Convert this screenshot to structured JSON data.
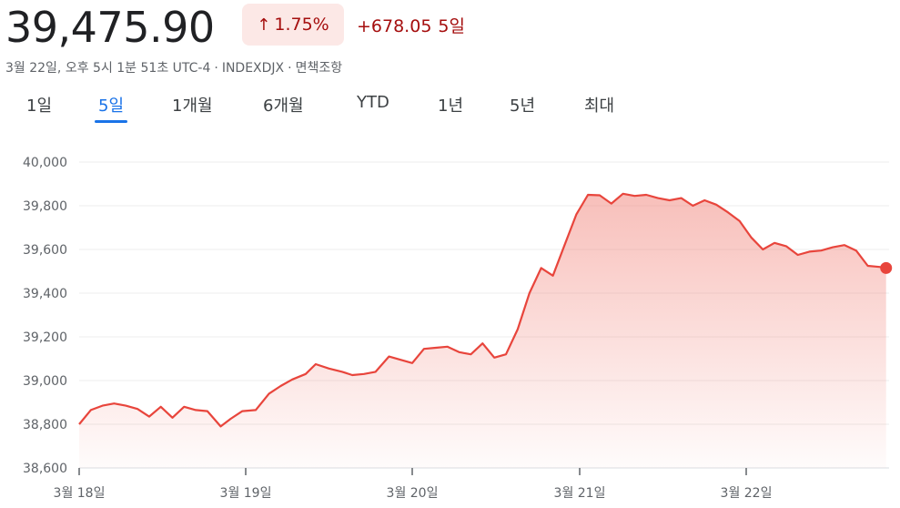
{
  "header": {
    "price": "39,475.90",
    "change_percent": "1.75%",
    "change_abs": "+678.05",
    "change_period": "5일",
    "up_arrow_icon": "arrow-up-icon"
  },
  "meta": {
    "timestamp": "3월 22일, 오후 5시 1분 51초 UTC-4",
    "ticker": "INDEXDJX",
    "disclaimer": "면책조항",
    "separator": "·"
  },
  "tabs": [
    {
      "label": "1일",
      "active": false
    },
    {
      "label": "5일",
      "active": true
    },
    {
      "label": "1개월",
      "active": false
    },
    {
      "label": "6개월",
      "active": false
    },
    {
      "label": "YTD",
      "active": false
    },
    {
      "label": "1년",
      "active": false
    },
    {
      "label": "5년",
      "active": false
    },
    {
      "label": "최대",
      "active": false
    }
  ],
  "chart_data": {
    "type": "area",
    "title": "",
    "xlabel": "",
    "ylabel": "",
    "ylim": [
      38600,
      40000
    ],
    "yticks": [
      38600,
      38800,
      39000,
      39200,
      39400,
      39600,
      39800,
      40000
    ],
    "ytick_labels": [
      "38,600",
      "38,800",
      "39,000",
      "39,200",
      "39,400",
      "39,600",
      "39,800",
      "40,000"
    ],
    "xtick_labels": [
      "3월 18일",
      "3월 19일",
      "3월 20일",
      "3월 21일",
      "3월 22일"
    ],
    "xtick_positions": [
      0,
      1,
      2,
      3,
      4
    ],
    "xlim": [
      0,
      4.84
    ],
    "grid": true,
    "line_color": "#e8453c",
    "fill_color": "#f28b82",
    "x": [
      0.0,
      0.07,
      0.14,
      0.21,
      0.28,
      0.35,
      0.42,
      0.49,
      0.56,
      0.63,
      0.7,
      0.77,
      0.85,
      0.91,
      0.98,
      1.06,
      1.14,
      1.21,
      1.28,
      1.36,
      1.42,
      1.5,
      1.58,
      1.64,
      1.71,
      1.78,
      1.86,
      1.93,
      2.0,
      2.07,
      2.14,
      2.21,
      2.28,
      2.35,
      2.42,
      2.49,
      2.56,
      2.63,
      2.7,
      2.77,
      2.84,
      2.91,
      2.98,
      3.05,
      3.12,
      3.19,
      3.26,
      3.33,
      3.4,
      3.47,
      3.54,
      3.61,
      3.68,
      3.75,
      3.82,
      3.89,
      3.96,
      4.03,
      4.1,
      4.17,
      4.24,
      4.31,
      4.38,
      4.45,
      4.52,
      4.59,
      4.66,
      4.73,
      4.8,
      4.84
    ],
    "y": [
      38800,
      38865,
      38885,
      38895,
      38885,
      38870,
      38835,
      38880,
      38830,
      38880,
      38865,
      38860,
      38790,
      38825,
      38860,
      38865,
      38940,
      38975,
      39005,
      39030,
      39075,
      39055,
      39040,
      39025,
      39030,
      39040,
      39110,
      39095,
      39080,
      39145,
      39150,
      39155,
      39130,
      39120,
      39170,
      39105,
      39120,
      39235,
      39400,
      39515,
      39480,
      39620,
      39760,
      39850,
      39848,
      39810,
      39855,
      39845,
      39850,
      39835,
      39825,
      39835,
      39800,
      39825,
      39805,
      39770,
      39730,
      39655,
      39600,
      39630,
      39615,
      39575,
      39590,
      39595,
      39610,
      39620,
      39595,
      39525,
      39520,
      39515
    ]
  }
}
